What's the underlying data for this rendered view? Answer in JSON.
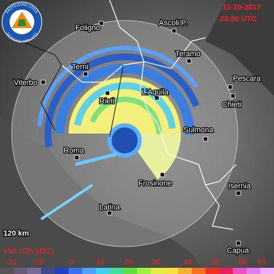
{
  "header": {
    "date": "11-10-2017",
    "time": "23:50 UTC"
  },
  "logo": {
    "top": "PROTEZIONE CIVILE",
    "bottom": "REGIONE ABRUZZO"
  },
  "cities": [
    "Foligno",
    "Ascoli P.",
    "Teramo",
    "Pescara",
    "Viterbo",
    "Terni",
    "Rieti",
    "L'Aquila",
    "Chieti",
    "Sulmona",
    "Roma",
    "Frosinone",
    "Isernia",
    "Latina",
    "Capua"
  ],
  "scale": "120 km",
  "legend": {
    "title": "VMI UZh [dBZ]",
    "ticks": [
      -20,
      -10,
      0,
      10,
      20,
      30,
      40,
      50,
      60,
      65
    ]
  }
}
